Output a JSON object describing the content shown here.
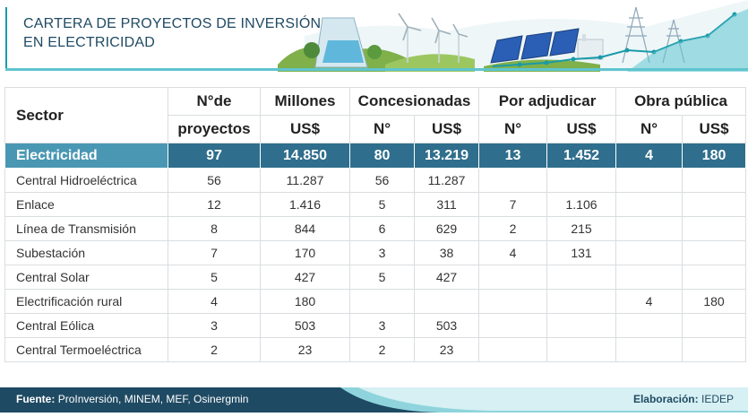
{
  "header": {
    "title_line1": "CARTERA DE PROYECTOS DE INVERSIÓN",
    "title_line2": "EN ELECTRICIDAD"
  },
  "table": {
    "head": {
      "sector": "Sector",
      "nde_line1": "N°de",
      "nde_line2": "proyectos",
      "millones": "Millones",
      "millones_unit": "US$",
      "concesionadas": "Concesionadas",
      "por_adjudicar": "Por adjudicar",
      "obra_publica": "Obra pública",
      "n": "N°",
      "usd": "US$"
    },
    "total": [
      "Electricidad",
      "97",
      "14.850",
      "80",
      "13.219",
      "13",
      "1.452",
      "4",
      "180"
    ],
    "rows": [
      [
        "Central Hidroeléctrica",
        "56",
        "11.287",
        "56",
        "11.287",
        "",
        "",
        "",
        ""
      ],
      [
        "Enlace",
        "12",
        "1.416",
        "5",
        "311",
        "7",
        "1.106",
        "",
        ""
      ],
      [
        "Línea de Transmisión",
        "8",
        "844",
        "6",
        "629",
        "2",
        "215",
        "",
        ""
      ],
      [
        "Subestación",
        "7",
        "170",
        "3",
        "38",
        "4",
        "131",
        "",
        ""
      ],
      [
        "Central Solar",
        "5",
        "427",
        "5",
        "427",
        "",
        "",
        "",
        ""
      ],
      [
        "Electrificación rural",
        "4",
        "180",
        "",
        "",
        "",
        "",
        "4",
        "180"
      ],
      [
        "Central Eólica",
        "3",
        "503",
        "3",
        "503",
        "",
        "",
        "",
        ""
      ],
      [
        "Central Termoeléctrica",
        "2",
        "23",
        "2",
        "23",
        "",
        "",
        "",
        ""
      ]
    ]
  },
  "footer": {
    "source_label": "Fuente:",
    "source_text": "ProInversión, MINEM, MEF, Osinergmin",
    "elab_label": "Elaboración:",
    "elab_text": "IEDEP"
  },
  "colors": {
    "accent": "#1f4a63",
    "highlight": "#2f6e8c",
    "teal": "#5fc4cf"
  }
}
